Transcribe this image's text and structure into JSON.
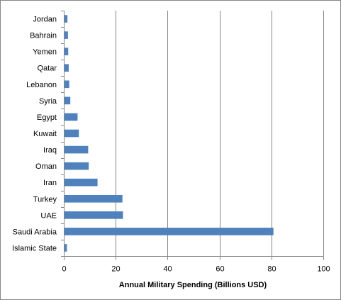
{
  "chart_data": {
    "type": "bar",
    "orientation": "horizontal",
    "categories": [
      "Islamic State",
      "Saudi Arabia",
      "UAE",
      "Turkey",
      "Iran",
      "Oman",
      "Iraq",
      "Kuwait",
      "Egypt",
      "Syria",
      "Lebanon",
      "Qatar",
      "Yemen",
      "Bahrain",
      "Jordan"
    ],
    "values": [
      1.2,
      80.8,
      22.8,
      22.6,
      13.0,
      9.6,
      9.4,
      5.8,
      5.3,
      2.5,
      2.1,
      1.9,
      1.7,
      1.6,
      1.4
    ],
    "xlabel": "Annual Military Spending (Billions  USD)",
    "ylabel": "",
    "xlim": [
      0,
      100
    ],
    "xticks": [
      0,
      20,
      40,
      60,
      80,
      100
    ],
    "grid": "vertical",
    "legend": "none",
    "bar_color": "#4f81bd",
    "grid_color": "#868686"
  }
}
